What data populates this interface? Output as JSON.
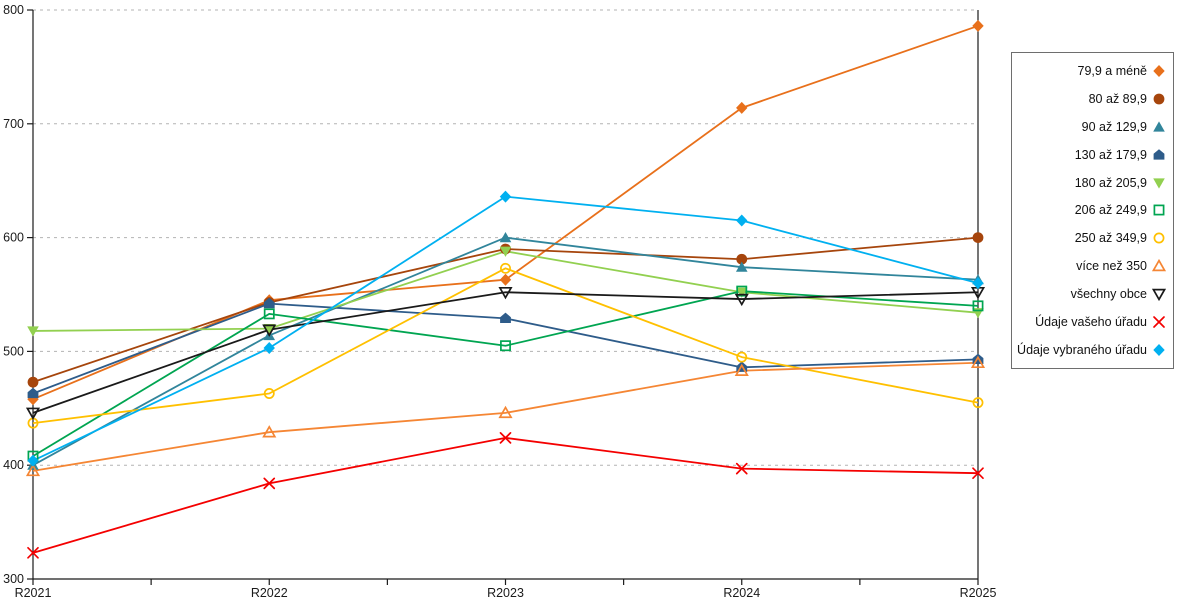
{
  "chart_data": {
    "type": "line",
    "title": "",
    "xlabel": "",
    "ylabel": "",
    "categories": [
      "R2021",
      "R2022",
      "R2023",
      "R2024",
      "R2025"
    ],
    "ylim": [
      300,
      800
    ],
    "ytick_step": 100,
    "grid": "horizontal-dashed",
    "legend_position": "right",
    "series": [
      {
        "name": "79,9 a méně",
        "marker": "diamond",
        "color": "#E8701B",
        "values": [
          458,
          545,
          563,
          714,
          786
        ]
      },
      {
        "name": "80 až 89,9",
        "marker": "circle",
        "color": "#A6450C",
        "values": [
          473,
          543,
          590,
          581,
          600
        ]
      },
      {
        "name": "90 až 129,9",
        "marker": "triangle-up",
        "color": "#31859B",
        "values": [
          400,
          514,
          600,
          574,
          563
        ]
      },
      {
        "name": "130 až 179,9",
        "marker": "pentagon",
        "color": "#2E5C8A",
        "values": [
          463,
          542,
          529,
          486,
          493
        ]
      },
      {
        "name": "180 až 205,9",
        "marker": "triangle-down",
        "color": "#92D050",
        "values": [
          518,
          520,
          588,
          552,
          534
        ]
      },
      {
        "name": "206 až 249,9",
        "marker": "square-open",
        "color": "#00A551",
        "values": [
          408,
          533,
          505,
          553,
          540
        ]
      },
      {
        "name": "250 až 349,9",
        "marker": "circle-open",
        "color": "#FFC000",
        "values": [
          437,
          463,
          573,
          495,
          455
        ]
      },
      {
        "name": "více než 350",
        "marker": "triangle-up-open",
        "color": "#F58634",
        "values": [
          395,
          429,
          446,
          483,
          490
        ]
      },
      {
        "name": "všechny obce",
        "marker": "triangle-down-open",
        "color": "#1A1A1A",
        "values": [
          446,
          519,
          552,
          546,
          552
        ]
      },
      {
        "name": "Údaje vašeho úřadu",
        "marker": "x",
        "color": "#F40000",
        "values": [
          323,
          384,
          424,
          397,
          393
        ]
      },
      {
        "name": "Údaje vybraného úřadu",
        "marker": "diamond",
        "color": "#00B0F0",
        "values": [
          404,
          503,
          636,
          615,
          560
        ]
      }
    ]
  },
  "colors": {
    "axis": "#1A1A1A",
    "gridline": "#B3B3B3",
    "tick_label": "#1A1A1A"
  }
}
